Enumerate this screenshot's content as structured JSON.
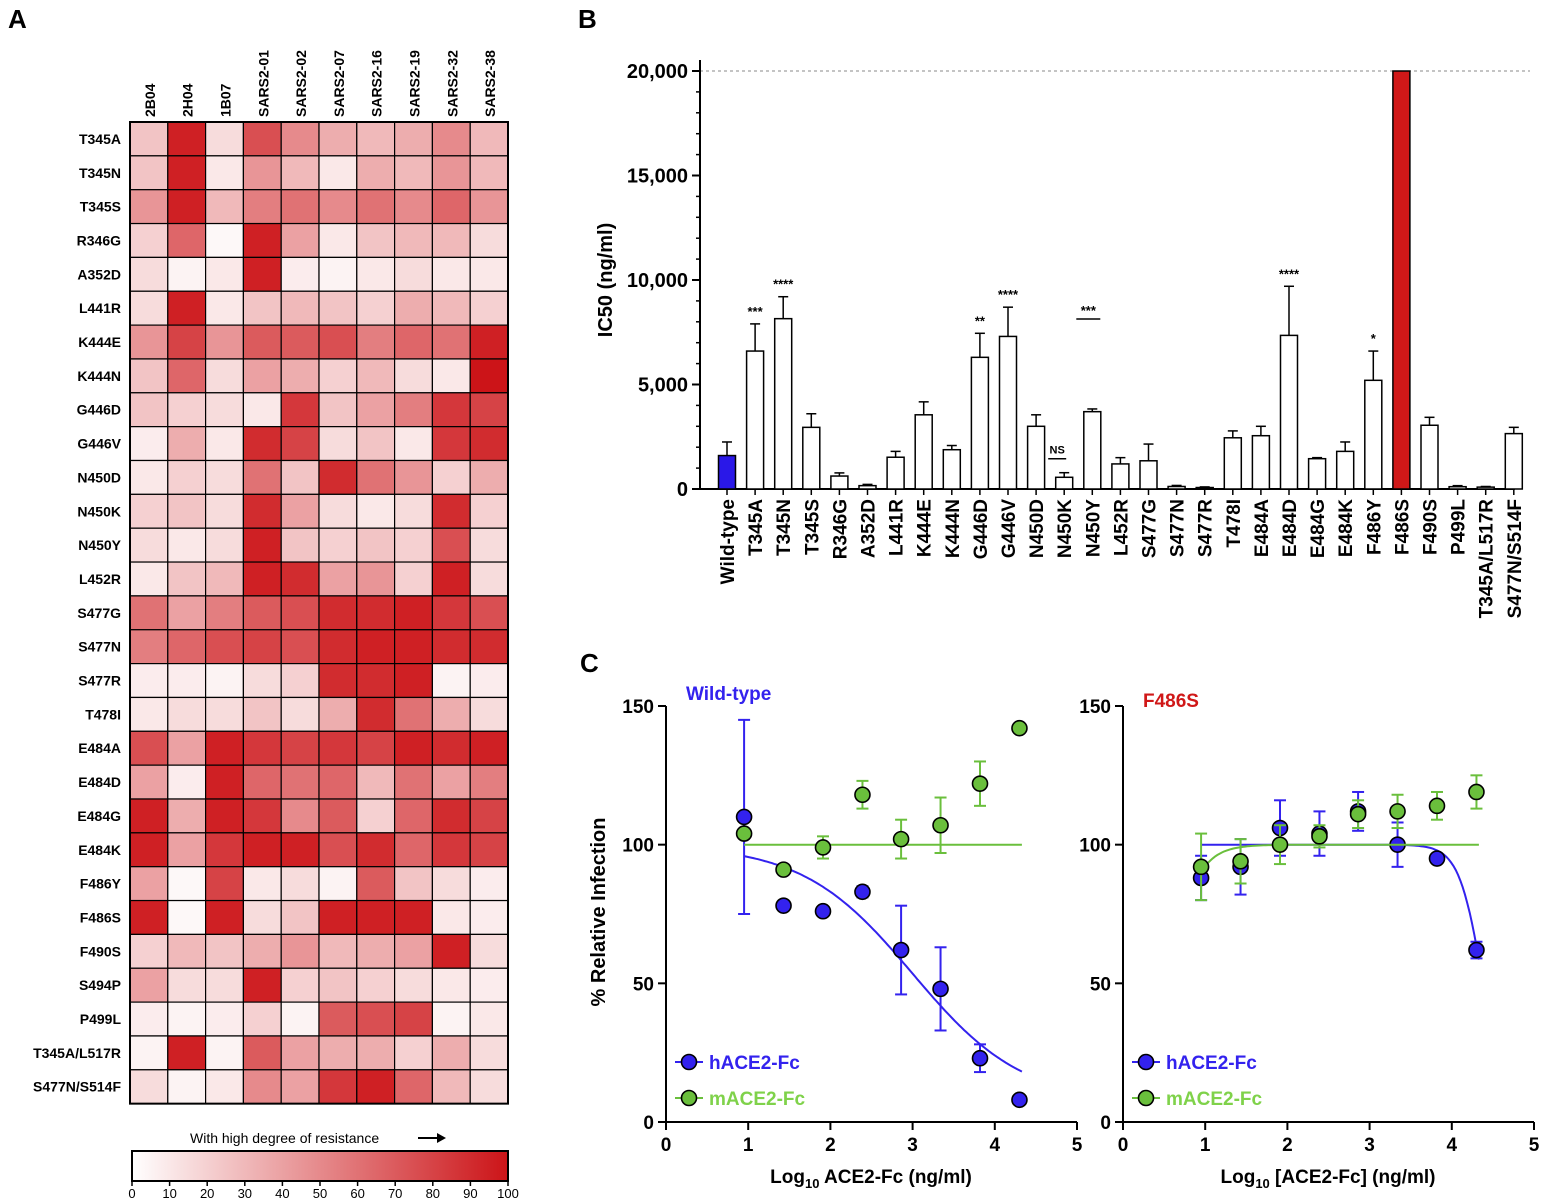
{
  "panels": {
    "a": "A",
    "b": "B",
    "c": "C"
  },
  "chart_data": [
    {
      "type": "heatmap",
      "columns": [
        "2B04",
        "2H04",
        "1B07",
        "SARS2-01",
        "SARS2-02",
        "SARS2-07",
        "SARS2-16",
        "SARS2-19",
        "SARS2-32",
        "SARS2-38"
      ],
      "rows": [
        "T345A",
        "T345N",
        "T345S",
        "R346G",
        "A352D",
        "L441R",
        "K444E",
        "K444N",
        "G446D",
        "G446V",
        "N450D",
        "N450K",
        "N450Y",
        "L452R",
        "S477G",
        "S477N",
        "S477R",
        "T478I",
        "E484A",
        "E484D",
        "E484G",
        "E484K",
        "F486Y",
        "F486S",
        "F490S",
        "S494P",
        "P499L",
        "T345A/L517R",
        "S477N/S514F"
      ],
      "values": [
        [
          25,
          95,
          15,
          75,
          50,
          35,
          30,
          35,
          50,
          30
        ],
        [
          25,
          95,
          10,
          45,
          30,
          10,
          35,
          30,
          45,
          30
        ],
        [
          45,
          95,
          30,
          55,
          60,
          50,
          60,
          50,
          65,
          45
        ],
        [
          20,
          65,
          3,
          95,
          40,
          10,
          25,
          30,
          30,
          15
        ],
        [
          15,
          5,
          10,
          95,
          8,
          5,
          10,
          15,
          10,
          10
        ],
        [
          15,
          95,
          10,
          25,
          30,
          25,
          20,
          35,
          30,
          20
        ],
        [
          45,
          80,
          45,
          70,
          70,
          75,
          55,
          65,
          60,
          95
        ],
        [
          25,
          65,
          15,
          40,
          35,
          20,
          30,
          15,
          10,
          100
        ],
        [
          25,
          20,
          15,
          10,
          85,
          25,
          40,
          55,
          85,
          80
        ],
        [
          8,
          35,
          10,
          90,
          80,
          15,
          25,
          10,
          85,
          90
        ],
        [
          10,
          20,
          15,
          60,
          25,
          90,
          60,
          45,
          20,
          35
        ],
        [
          20,
          25,
          15,
          90,
          40,
          15,
          10,
          15,
          90,
          20
        ],
        [
          15,
          10,
          15,
          95,
          25,
          20,
          25,
          20,
          75,
          15
        ],
        [
          10,
          25,
          30,
          95,
          90,
          40,
          45,
          20,
          95,
          15
        ],
        [
          60,
          40,
          55,
          70,
          75,
          90,
          90,
          95,
          85,
          75
        ],
        [
          55,
          65,
          75,
          80,
          75,
          90,
          95,
          95,
          90,
          90
        ],
        [
          8,
          8,
          5,
          15,
          20,
          90,
          90,
          95,
          5,
          8
        ],
        [
          10,
          15,
          15,
          25,
          15,
          35,
          90,
          60,
          35,
          15
        ],
        [
          75,
          40,
          95,
          85,
          80,
          85,
          80,
          95,
          90,
          95
        ],
        [
          40,
          8,
          95,
          65,
          60,
          65,
          30,
          60,
          40,
          55
        ],
        [
          95,
          35,
          95,
          85,
          50,
          70,
          20,
          65,
          90,
          80
        ],
        [
          95,
          40,
          85,
          95,
          95,
          75,
          90,
          65,
          85,
          80
        ],
        [
          40,
          3,
          80,
          10,
          15,
          5,
          70,
          25,
          15,
          8
        ],
        [
          95,
          3,
          95,
          15,
          25,
          95,
          95,
          95,
          10,
          8
        ],
        [
          20,
          30,
          25,
          35,
          45,
          30,
          35,
          40,
          95,
          15
        ],
        [
          40,
          15,
          15,
          95,
          20,
          25,
          20,
          15,
          10,
          8
        ],
        [
          8,
          5,
          8,
          20,
          5,
          70,
          75,
          80,
          5,
          10
        ],
        [
          5,
          95,
          5,
          70,
          40,
          35,
          35,
          20,
          35,
          15
        ],
        [
          15,
          5,
          10,
          50,
          40,
          85,
          95,
          65,
          30,
          15
        ]
      ],
      "colorbar": {
        "label": "With high degree of resistance",
        "ticks": [
          0,
          10,
          20,
          30,
          40,
          50,
          60,
          70,
          80,
          90,
          100
        ],
        "min_color": "#ffffff",
        "max_color": "#cc1418"
      }
    },
    {
      "type": "bar",
      "ylabel": "IC50 (ng/ml)",
      "ylim": [
        0,
        20000
      ],
      "yticks": [
        0,
        5000,
        10000,
        15000,
        20000
      ],
      "ytick_labels": [
        "0",
        "5,000",
        "10,000",
        "15,000",
        "20,000"
      ],
      "categories": [
        "Wild-type",
        "T345A",
        "T345N",
        "T345S",
        "R346G",
        "A352D",
        "L441R",
        "K444E",
        "K444N",
        "G446D",
        "G446V",
        "N450D",
        "N450K",
        "N450Y",
        "L452R",
        "S477G",
        "S477N",
        "S477R",
        "T478I",
        "E484A",
        "E484D",
        "E484G",
        "E484K",
        "F486Y",
        "F486S",
        "F490S",
        "P499L",
        "T345A/L517R",
        "S477N/S514F"
      ],
      "values": [
        1600,
        6600,
        8150,
        2950,
        620,
        160,
        1520,
        3550,
        1880,
        6300,
        7300,
        3000,
        560,
        3700,
        1200,
        1350,
        120,
        70,
        2450,
        2550,
        7350,
        1450,
        1800,
        5200,
        20000,
        3050,
        110,
        90,
        2650
      ],
      "errors": [
        650,
        1300,
        1050,
        650,
        150,
        60,
        280,
        620,
        200,
        1150,
        1400,
        550,
        220,
        130,
        300,
        800,
        50,
        30,
        330,
        450,
        2350,
        50,
        450,
        1400,
        0,
        380,
        50,
        30,
        300
      ],
      "significance": [
        "",
        "***",
        "****",
        "",
        "",
        "",
        "",
        "",
        "",
        "**",
        "****",
        "",
        "NS",
        "***",
        "",
        "",
        "",
        "",
        "",
        "",
        "****",
        "",
        "",
        "*",
        "",
        "",
        "",
        "",
        ""
      ],
      "colors": {
        "Wild-type": "#2a18e8",
        "F486S": "#d01818",
        "default": "#ffffff"
      },
      "reference_line": 20000
    },
    {
      "type": "scatter",
      "title": "Wild-type",
      "xlabel": "Log10 ACE2-Fc (ng/ml)",
      "ylabel": "% Relative Infection",
      "xlim": [
        0,
        5
      ],
      "ylim": [
        0,
        150
      ],
      "xticks": [
        0,
        1,
        2,
        3,
        4,
        5
      ],
      "yticks": [
        0,
        50,
        100,
        150
      ],
      "series": [
        {
          "name": "hACE2-Fc",
          "color": "#3322ee",
          "x": [
            0.95,
            1.43,
            1.91,
            2.39,
            2.86,
            3.34,
            3.82,
            4.3
          ],
          "y": [
            110,
            78,
            76,
            83,
            62,
            48,
            23,
            8
          ],
          "err": [
            35,
            0,
            0,
            2,
            16,
            15,
            5,
            0
          ],
          "fit": {
            "top": 100,
            "bottom": 7,
            "logIC50": 3.0,
            "hill": 0.65
          }
        },
        {
          "name": "mACE2-Fc",
          "color": "#6abf3c",
          "x": [
            0.95,
            1.43,
            1.91,
            2.39,
            2.86,
            3.34,
            3.82,
            4.3
          ],
          "y": [
            104,
            91,
            99,
            118,
            102,
            107,
            122,
            142
          ],
          "err": [
            0,
            0,
            4,
            5,
            7,
            10,
            8,
            0
          ],
          "fit": {
            "flat": 100
          }
        }
      ]
    },
    {
      "type": "scatter",
      "title": "F486S",
      "xlabel": "Log10 [ACE2-Fc] (ng/ml)",
      "ylabel": "",
      "xlim": [
        0,
        5
      ],
      "ylim": [
        0,
        150
      ],
      "xticks": [
        0,
        1,
        2,
        3,
        4,
        5
      ],
      "yticks": [
        0,
        50,
        100,
        150
      ],
      "series": [
        {
          "name": "hACE2-Fc",
          "color": "#3322ee",
          "x": [
            0.95,
            1.43,
            1.91,
            2.39,
            2.86,
            3.34,
            3.82,
            4.3
          ],
          "y": [
            88,
            92,
            106,
            104,
            112,
            100,
            95,
            62
          ],
          "err": [
            8,
            10,
            10,
            8,
            7,
            8,
            0,
            3
          ],
          "fit": {
            "top": 100,
            "bottom": 0,
            "logIC50": 4.38,
            "hill": 3.0
          }
        },
        {
          "name": "mACE2-Fc",
          "color": "#6abf3c",
          "x": [
            0.95,
            1.43,
            1.91,
            2.39,
            2.86,
            3.34,
            3.82,
            4.3
          ],
          "y": [
            92,
            94,
            100,
            103,
            111,
            112,
            114,
            119
          ],
          "err": [
            12,
            8,
            7,
            4,
            5,
            6,
            5,
            6
          ],
          "fit": {
            "rise_start": 90,
            "plateau": 100,
            "k": 5
          }
        }
      ]
    }
  ]
}
